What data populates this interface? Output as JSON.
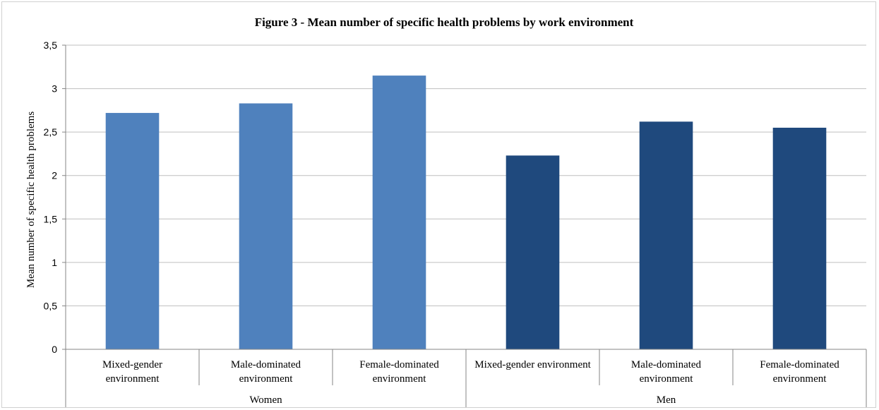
{
  "chart_data": {
    "type": "bar",
    "title": "Figure 3 - Mean number of specific health problems  by work environment",
    "xlabel": "",
    "ylabel": "Mean number of specific health problems",
    "ylim": [
      0,
      3.5
    ],
    "yticks": [
      "0",
      "0,5",
      "1",
      "1,5",
      "2",
      "2,5",
      "3",
      "3,5"
    ],
    "ytick_values": [
      0,
      0.5,
      1,
      1.5,
      2,
      2.5,
      3,
      3.5
    ],
    "grid": true,
    "legend": "none",
    "groups": [
      {
        "name": "Women",
        "color": "#4f81bd",
        "categories": [
          [
            "Mixed-gender",
            "environment"
          ],
          [
            "Male-dominated",
            "environment"
          ],
          [
            "Female-dominated",
            "environment"
          ]
        ],
        "values": [
          2.72,
          2.83,
          3.15
        ]
      },
      {
        "name": "Men",
        "color": "#1f497d",
        "categories": [
          [
            "Mixed-gender environment"
          ],
          [
            "Male-dominated",
            "environment"
          ],
          [
            "Female-dominated",
            "environment"
          ]
        ],
        "values": [
          2.23,
          2.62,
          2.55
        ]
      }
    ]
  }
}
